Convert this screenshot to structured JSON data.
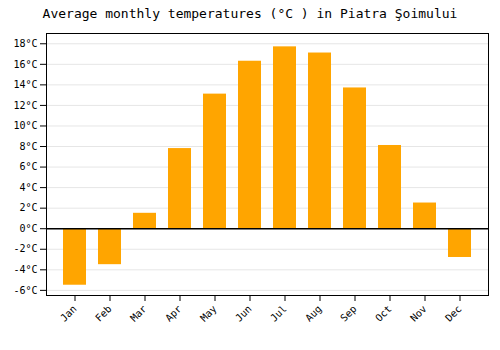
{
  "chart_data": {
    "type": "bar",
    "title": "Average monthly temperatures (°C ) in Piatra Şoimului",
    "categories": [
      "Jan",
      "Feb",
      "Mar",
      "Apr",
      "May",
      "Jun",
      "Jul",
      "Aug",
      "Sep",
      "Oct",
      "Nov",
      "Dec"
    ],
    "values": [
      -5.5,
      -3.5,
      1.5,
      7.8,
      13.1,
      16.3,
      17.7,
      17.1,
      13.7,
      8.1,
      2.5,
      -2.8
    ],
    "color": "#FFA500",
    "ylim": [
      -6.5,
      19
    ],
    "yticks": [
      {
        "value": -6,
        "label": "-6°C"
      },
      {
        "value": -4,
        "label": "-4°C"
      },
      {
        "value": -2,
        "label": "-2°C"
      },
      {
        "value": 0,
        "label": "0°C"
      },
      {
        "value": 2,
        "label": "2°C"
      },
      {
        "value": 4,
        "label": "4°C"
      },
      {
        "value": 6,
        "label": "6°C"
      },
      {
        "value": 8,
        "label": "8°C"
      },
      {
        "value": 10,
        "label": "10°C"
      },
      {
        "value": 12,
        "label": "12°C"
      },
      {
        "value": 14,
        "label": "14°C"
      },
      {
        "value": 16,
        "label": "16°C"
      },
      {
        "value": 18,
        "label": "18°C"
      }
    ],
    "grid": true
  }
}
